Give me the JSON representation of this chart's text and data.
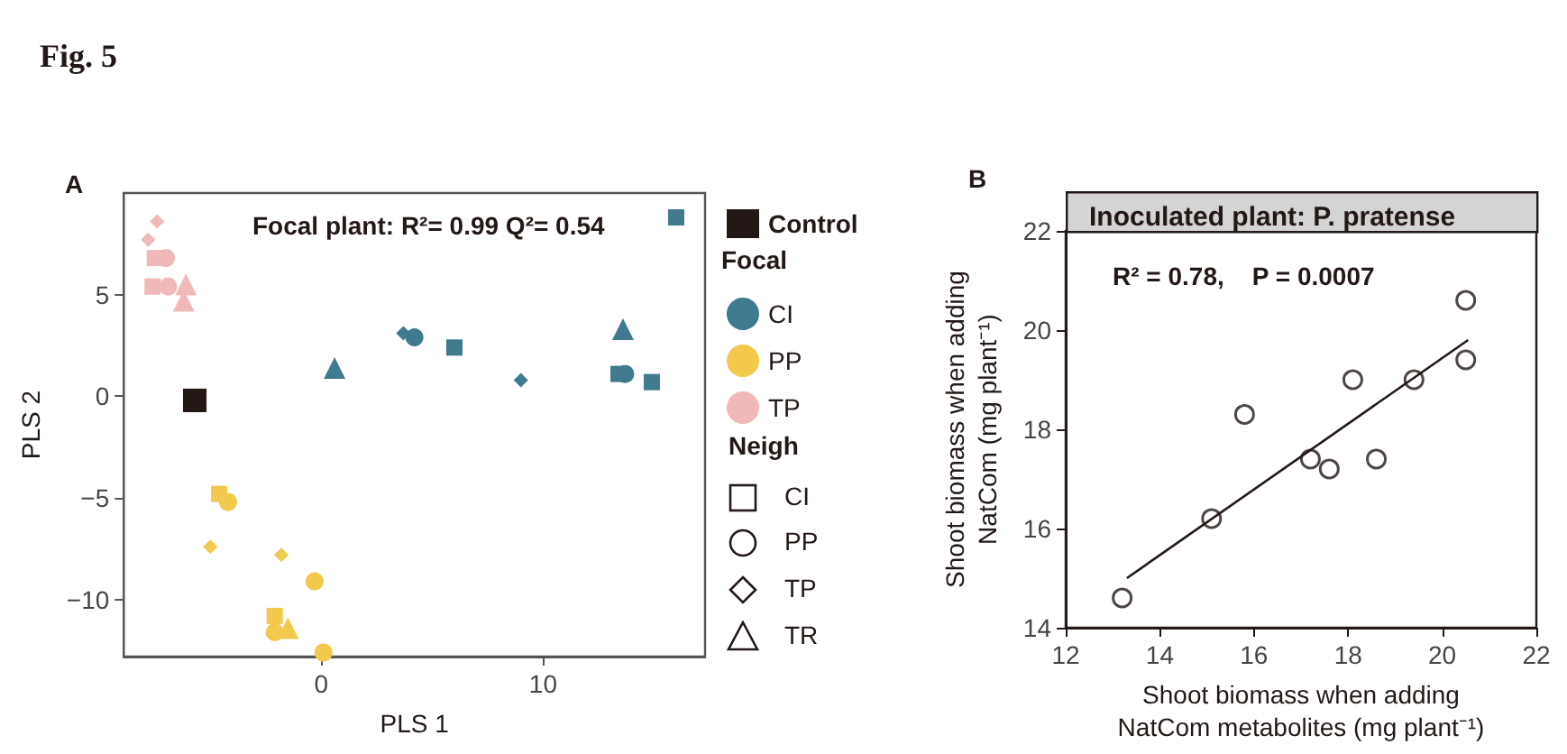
{
  "chart_data": [
    {
      "type": "scatter",
      "xlabel": "PLS 1",
      "ylabel": "PLS 2",
      "xlim": [
        -8.9,
        17.3
      ],
      "ylim": [
        -12.8,
        10
      ],
      "xticks": [
        0,
        10
      ],
      "yticks": [
        {
          "value": -10,
          "label": "−10"
        },
        {
          "value": -5,
          "label": "−5"
        },
        0,
        5
      ],
      "legend": "right",
      "annotations": [
        "Fig. 5",
        "A",
        "Focal plant: R²= 0.99 Q²= 0.54",
        "Focal",
        "Neigh",
        "CI",
        "PP",
        "TP",
        "TR"
      ],
      "series": [
        {
          "name": "Control",
          "color": "#231815",
          "marker": "square",
          "x": [
            -5.7
          ],
          "values": [
            -0.2
          ]
        },
        {
          "name": "CI",
          "color": "#3f7a8e",
          "marker": "circle",
          "x": [
            4.2,
            13.7
          ],
          "values": [
            2.9,
            1.1
          ]
        },
        {
          "name": "PP",
          "color": "#f2c94c",
          "marker": "circle",
          "x": [
            -4.2,
            -0.3,
            -2.1,
            0.1
          ],
          "values": [
            -5.2,
            -9.1,
            -11.6,
            -12.6
          ]
        },
        {
          "name": "TP",
          "color": "#f0b8b8",
          "marker": "circle",
          "x": [
            -7.0,
            -6.9
          ],
          "values": [
            6.8,
            5.4
          ]
        },
        {
          "color": "#3f7a8e",
          "marker": "square",
          "x": [
            16.0,
            6.0,
            13.4,
            14.9
          ],
          "values": [
            8.8,
            2.4,
            1.1,
            0.7
          ]
        },
        {
          "color": "#3f7a8e",
          "marker": "diamond",
          "x": [
            3.7,
            9.0
          ],
          "values": [
            3.1,
            0.8
          ]
        },
        {
          "color": "#3f7a8e",
          "marker": "triangle",
          "x": [
            0.6,
            13.6
          ],
          "values": [
            1.4,
            3.3
          ]
        },
        {
          "color": "#f2c94c",
          "marker": "square",
          "x": [
            -4.6,
            -2.1
          ],
          "values": [
            -4.8,
            -10.8
          ]
        },
        {
          "color": "#f2c94c",
          "marker": "diamond",
          "x": [
            -5.0,
            -1.8
          ],
          "values": [
            -7.4,
            -7.8
          ]
        },
        {
          "color": "#f2c94c",
          "marker": "triangle",
          "x": [
            -1.5
          ],
          "values": [
            -11.4
          ]
        },
        {
          "color": "#f0b8b8",
          "marker": "square",
          "x": [
            -7.5,
            -7.6
          ],
          "values": [
            6.8,
            5.4
          ]
        },
        {
          "color": "#f0b8b8",
          "marker": "diamond",
          "x": [
            -7.4,
            -7.8
          ],
          "values": [
            8.6,
            7.7
          ]
        },
        {
          "color": "#f0b8b8",
          "marker": "triangle",
          "x": [
            -6.1,
            -6.2
          ],
          "values": [
            5.5,
            4.7
          ]
        }
      ]
    },
    {
      "type": "scatter",
      "title": "Inoculated plant: P. pratense",
      "xlabel": "Shoot biomass when adding NatCom metabolites (mg plant⁻¹)",
      "ylabel": "Shoot biomass when adding NatCom (mg plant⁻¹)",
      "xlim": [
        12,
        22
      ],
      "ylim": [
        14,
        22
      ],
      "xticks": [
        12,
        14,
        16,
        18,
        20,
        22
      ],
      "yticks": [
        14,
        16,
        18,
        20,
        22
      ],
      "annotations": [
        "B",
        "R² = 0.78,    P = 0.0007"
      ],
      "series": [
        {
          "color": "#231815",
          "marker": "circle",
          "x": [
            13.2,
            15.1,
            15.8,
            17.2,
            17.6,
            18.1,
            18.6,
            19.4,
            20.5,
            20.5
          ],
          "values": [
            14.6,
            16.2,
            18.3,
            17.4,
            17.2,
            19.0,
            17.4,
            19.0,
            20.6,
            19.4
          ]
        },
        {
          "type": "line",
          "color": "#231815",
          "marker": "none",
          "x": [
            13.3,
            20.55
          ],
          "values": [
            15.0,
            19.8
          ]
        }
      ]
    }
  ]
}
